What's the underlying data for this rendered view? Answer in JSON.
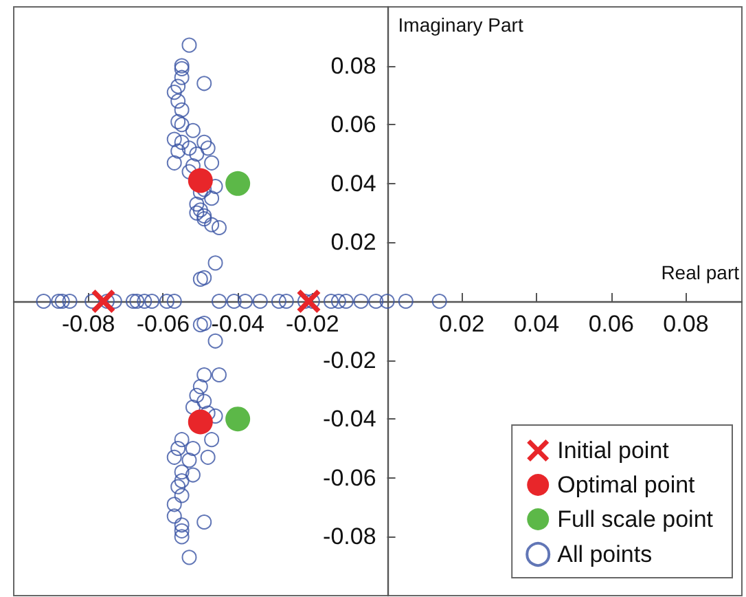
{
  "chart_data": {
    "type": "scatter",
    "xlabel": "Real part",
    "ylabel": "Imaginary Part",
    "xlim": [
      -0.1,
      0.095
    ],
    "ylim": [
      -0.1,
      0.1
    ],
    "xticks": [
      -0.08,
      -0.06,
      -0.04,
      -0.02,
      0.02,
      0.04,
      0.06,
      0.08
    ],
    "yticks": [
      -0.08,
      -0.06,
      -0.04,
      -0.02,
      0.02,
      0.04,
      0.06,
      0.08
    ],
    "grid": false,
    "legend": "bottom right",
    "series": [
      {
        "name": "Initial point",
        "color": "#e8262a",
        "marker": "cross",
        "x": [
          -0.076,
          -0.021
        ],
        "values": [
          0,
          0
        ]
      },
      {
        "name": "Optimal point",
        "color": "#e8262a",
        "marker": "circle",
        "x": [
          -0.05,
          -0.05
        ],
        "values": [
          0.041,
          -0.041
        ]
      },
      {
        "name": "Full scale point",
        "color": "#5cb848",
        "marker": "circle",
        "x": [
          -0.04,
          -0.04
        ],
        "values": [
          0.04,
          -0.04
        ]
      },
      {
        "name": "All points",
        "color": "#3a54a4",
        "marker": "circle",
        "x": [
          -0.092,
          -0.088,
          -0.087,
          -0.085,
          -0.079,
          -0.075,
          -0.073,
          -0.068,
          -0.067,
          -0.065,
          -0.063,
          -0.059,
          -0.057,
          -0.045,
          -0.041,
          -0.038,
          -0.034,
          -0.029,
          -0.027,
          -0.022,
          -0.02,
          -0.015,
          -0.013,
          -0.011,
          -0.007,
          -0.003,
          0,
          0.005,
          0.014,
          -0.053,
          -0.055,
          -0.055,
          -0.055,
          -0.049,
          -0.056,
          -0.057,
          -0.056,
          -0.055,
          -0.056,
          -0.055,
          -0.052,
          -0.057,
          -0.055,
          -0.049,
          -0.053,
          -0.048,
          -0.056,
          -0.051,
          -0.057,
          -0.047,
          -0.052,
          -0.053,
          -0.046,
          -0.049,
          -0.05,
          -0.047,
          -0.051,
          -0.05,
          -0.051,
          -0.049,
          -0.049,
          -0.047,
          -0.045,
          -0.046,
          -0.049,
          -0.05,
          -0.049,
          -0.05,
          -0.046,
          -0.045,
          -0.049,
          -0.05,
          -0.051,
          -0.049,
          -0.052,
          -0.048,
          -0.046,
          -0.055,
          -0.047,
          -0.056,
          -0.052,
          -0.048,
          -0.057,
          -0.053,
          -0.055,
          -0.052,
          -0.055,
          -0.056,
          -0.055,
          -0.057,
          -0.057,
          -0.049,
          -0.055,
          -0.055,
          -0.055,
          -0.053
        ],
        "values": [
          0,
          0,
          0,
          0,
          0,
          0,
          0,
          0,
          0,
          0,
          0,
          0,
          0,
          0,
          0,
          0,
          0,
          0,
          0,
          0,
          0,
          0,
          0,
          0,
          0,
          0,
          0,
          0,
          0,
          0.087,
          0.079,
          0.08,
          0.076,
          0.074,
          0.073,
          0.071,
          0.068,
          0.065,
          0.061,
          0.06,
          0.058,
          0.055,
          0.054,
          0.054,
          0.052,
          0.052,
          0.051,
          0.05,
          0.047,
          0.047,
          0.046,
          0.044,
          0.039,
          0.038,
          0.037,
          0.035,
          0.033,
          0.031,
          0.03,
          0.029,
          0.028,
          0.026,
          0.025,
          0.013,
          0.008,
          0.0075,
          -0.0075,
          -0.008,
          -0.0135,
          -0.025,
          -0.025,
          -0.029,
          -0.032,
          -0.034,
          -0.036,
          -0.038,
          -0.039,
          -0.047,
          -0.047,
          -0.05,
          -0.05,
          -0.053,
          -0.053,
          -0.054,
          -0.058,
          -0.059,
          -0.061,
          -0.063,
          -0.066,
          -0.069,
          -0.073,
          -0.075,
          -0.076,
          -0.078,
          -0.08,
          -0.087
        ]
      }
    ]
  }
}
